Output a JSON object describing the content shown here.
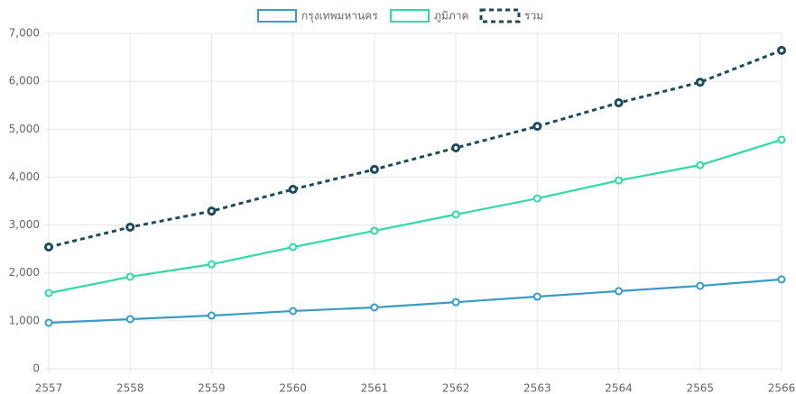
{
  "chart_data": {
    "type": "line",
    "categories": [
      "2557",
      "2558",
      "2559",
      "2560",
      "2561",
      "2562",
      "2563",
      "2564",
      "2565",
      "2566"
    ],
    "series": [
      {
        "name": "กรุงเทพมหานคร",
        "color": "#3a9bc6",
        "dashed": false,
        "values": [
          960,
          1035,
          1110,
          1205,
          1280,
          1390,
          1505,
          1620,
          1730,
          1865
        ]
      },
      {
        "name": "ภูมิภาค",
        "color": "#2fdaa3",
        "dashed": false,
        "values": [
          1580,
          1920,
          2180,
          2540,
          2880,
          3220,
          3555,
          3930,
          4250,
          4780
        ]
      },
      {
        "name": "รวม",
        "color": "#1d4a5c",
        "dashed": true,
        "values": [
          2540,
          2955,
          3290,
          3745,
          4160,
          4610,
          5060,
          5550,
          5980,
          6645
        ]
      }
    ],
    "ylim": [
      0,
      7000
    ],
    "yticks": [
      {
        "value": 0,
        "label": "0"
      },
      {
        "value": 1000,
        "label": "1,000"
      },
      {
        "value": 2000,
        "label": "2,000"
      },
      {
        "value": 3000,
        "label": "3,000"
      },
      {
        "value": 4000,
        "label": "4,000"
      },
      {
        "value": 5000,
        "label": "5,000"
      },
      {
        "value": 6000,
        "label": "6,000"
      },
      {
        "value": 7000,
        "label": "7,000"
      }
    ],
    "grid": true,
    "legend": "top"
  }
}
